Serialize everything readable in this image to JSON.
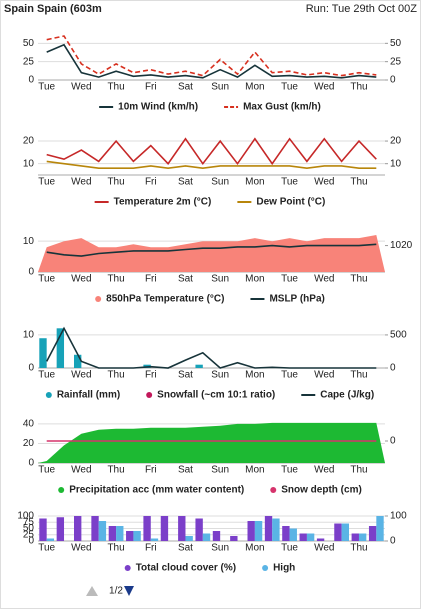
{
  "header": {
    "title": "Spain Spain (603m",
    "run": "Run: Tue 29th Oct 00Z"
  },
  "pagination": "1/2",
  "chart_data": [
    {
      "type": "line",
      "categories": [
        "Tue",
        null,
        "Wed",
        null,
        "Thu",
        null,
        "Fri",
        null,
        "Sat",
        null,
        "Sun",
        null,
        "Mon",
        null,
        "Tue",
        null,
        "Wed",
        null,
        "Thu",
        null
      ],
      "ylim": [
        0,
        60
      ],
      "yticks": [
        0,
        25,
        50
      ],
      "y2lim": [
        0,
        60
      ],
      "y2ticks": [
        0,
        25,
        50
      ],
      "grid": true,
      "series": [
        {
          "name": "10m Wind (km/h)",
          "type": "line",
          "color": "#17343a",
          "values": [
            38,
            48,
            10,
            4,
            12,
            5,
            7,
            4,
            6,
            3,
            14,
            4,
            20,
            5,
            6,
            4,
            5,
            3,
            6,
            4
          ]
        },
        {
          "name": "Max Gust (km/h)",
          "type": "line",
          "style": "dashed",
          "color": "#d7301f",
          "values": [
            55,
            60,
            22,
            8,
            22,
            10,
            14,
            8,
            12,
            6,
            28,
            8,
            38,
            10,
            12,
            7,
            10,
            6,
            10,
            7
          ]
        }
      ]
    },
    {
      "type": "line",
      "categories": [
        "Tue",
        null,
        "Wed",
        null,
        "Thu",
        null,
        "Fri",
        null,
        "Sat",
        null,
        "Sun",
        null,
        "Mon",
        null,
        "Tue",
        null,
        "Wed",
        null,
        "Thu",
        null
      ],
      "ylim": [
        5,
        24
      ],
      "yticks": [
        10,
        20
      ],
      "y2lim": [
        5,
        24
      ],
      "y2ticks": [
        10,
        20
      ],
      "grid": true,
      "series": [
        {
          "name": "Temperature 2m (°C)",
          "type": "line",
          "color": "#c62828",
          "values": [
            14,
            12,
            16,
            11,
            20,
            11,
            18,
            10,
            21,
            10,
            20,
            10,
            21,
            10,
            21,
            11,
            21,
            11,
            20,
            12
          ]
        },
        {
          "name": "Dew Point (°C)",
          "type": "line",
          "color": "#b8860b",
          "values": [
            11,
            10,
            9,
            8,
            8,
            8,
            9,
            8,
            9,
            8,
            9,
            9,
            9,
            9,
            9,
            8,
            9,
            9,
            8,
            8
          ]
        }
      ]
    },
    {
      "type": "line",
      "categories": [
        "Tue",
        null,
        "Wed",
        null,
        "Thu",
        null,
        "Fri",
        null,
        "Sat",
        null,
        "Sun",
        null,
        "Mon",
        null,
        "Tue",
        null,
        "Wed",
        null,
        "Thu",
        null
      ],
      "ylim": [
        0,
        12
      ],
      "yticks": [
        0,
        10
      ],
      "y2lim": [
        1000,
        1028
      ],
      "y2ticks": [
        1020
      ],
      "grid": true,
      "series": [
        {
          "name": "850hPa Temperature (°C)",
          "type": "area",
          "color": "#f88379",
          "values": [
            8,
            10,
            11,
            8,
            8,
            9,
            8,
            8,
            9,
            10,
            10,
            10,
            11,
            10,
            11,
            10,
            11,
            11,
            11,
            12
          ]
        },
        {
          "name": "MSLP (hPa)",
          "type": "line",
          "axis": "y2",
          "color": "#17343a",
          "values": [
            1015,
            1013,
            1012,
            1014,
            1015,
            1016,
            1016,
            1016,
            1017,
            1018,
            1018,
            1019,
            1019,
            1020,
            1019,
            1020,
            1020,
            1020,
            1020,
            1021
          ]
        }
      ]
    },
    {
      "type": "bar",
      "categories": [
        "Tue",
        null,
        "Wed",
        null,
        "Thu",
        null,
        "Fri",
        null,
        "Sat",
        null,
        "Sun",
        null,
        "Mon",
        null,
        "Tue",
        null,
        "Wed",
        null,
        "Thu",
        null
      ],
      "ylim": [
        0,
        13
      ],
      "yticks": [
        0,
        10
      ],
      "y2lim": [
        0,
        650
      ],
      "y2ticks": [
        0,
        500
      ],
      "grid": true,
      "series": [
        {
          "name": "Rainfall (mm)",
          "type": "bar",
          "color": "#17a2b8",
          "values": [
            9,
            12,
            4,
            0,
            0,
            0,
            1,
            0,
            0,
            1,
            0,
            0,
            0,
            0,
            0,
            0,
            0,
            0,
            0,
            0
          ]
        },
        {
          "name": "Snowfall (~cm 10:1 ratio)",
          "type": "bar",
          "color": "#c2185b",
          "values": [
            0,
            0,
            0,
            0,
            0,
            0,
            0,
            0,
            0,
            0,
            0,
            0,
            0,
            0,
            0,
            0,
            0,
            0,
            0,
            0
          ]
        },
        {
          "name": "Cape (J/kg)",
          "type": "line",
          "axis": "y2",
          "color": "#17343a",
          "values": [
            100,
            600,
            100,
            0,
            0,
            0,
            20,
            0,
            120,
            230,
            0,
            80,
            0,
            10,
            0,
            0,
            0,
            0,
            0,
            0
          ]
        }
      ]
    },
    {
      "type": "area",
      "categories": [
        "Tue",
        null,
        "Wed",
        null,
        "Thu",
        null,
        "Fri",
        null,
        "Sat",
        null,
        "Sun",
        null,
        "Mon",
        null,
        "Tue",
        null,
        "Wed",
        null,
        "Thu",
        null
      ],
      "ylim": [
        0,
        45
      ],
      "yticks": [
        0,
        20,
        40
      ],
      "y2lim": [
        -1,
        1
      ],
      "y2ticks": [
        0
      ],
      "grid": true,
      "series": [
        {
          "name": "Precipitation acc (mm water content)",
          "type": "area",
          "color": "#1db933",
          "values": [
            2,
            18,
            30,
            34,
            35,
            35,
            36,
            36,
            36,
            37,
            38,
            40,
            40,
            41,
            41,
            41,
            41,
            41,
            41,
            41
          ]
        },
        {
          "name": "Snow depth (cm)",
          "type": "line",
          "axis": "y2",
          "legend_marker": "dot",
          "color": "#d6336c",
          "values": [
            0,
            0,
            0,
            0,
            0,
            0,
            0,
            0,
            0,
            0,
            0,
            0,
            0,
            0,
            0,
            0,
            0,
            0,
            0,
            0
          ]
        }
      ]
    },
    {
      "type": "bar",
      "categories": [
        "Tue",
        null,
        "Wed",
        null,
        "Thu",
        null,
        "Fri",
        null,
        "Sat",
        null,
        "Sun",
        null,
        "Mon",
        null,
        "Tue",
        null,
        "Wed",
        null,
        "Thu",
        null
      ],
      "ylim": [
        0,
        100
      ],
      "yticks": [
        0,
        25,
        50,
        75,
        100
      ],
      "y2lim": [
        0,
        100
      ],
      "y2ticks": [
        0,
        100
      ],
      "grid": true,
      "series": [
        {
          "name": "Total cloud cover (%)",
          "type": "bar",
          "color": "#7b3fc9",
          "values": [
            90,
            95,
            100,
            100,
            60,
            40,
            100,
            100,
            100,
            90,
            40,
            20,
            80,
            100,
            60,
            30,
            10,
            70,
            30,
            60
          ]
        },
        {
          "name": "High",
          "type": "bar",
          "color": "#5ab4e5",
          "values": [
            10,
            0,
            0,
            80,
            60,
            40,
            10,
            0,
            20,
            30,
            0,
            0,
            80,
            90,
            50,
            30,
            0,
            70,
            30,
            100
          ]
        }
      ]
    }
  ]
}
